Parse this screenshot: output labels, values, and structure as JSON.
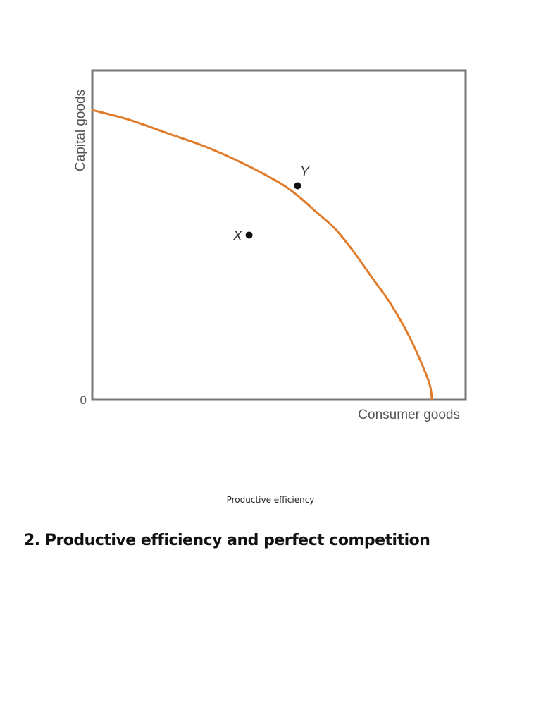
{
  "chart_data": {
    "type": "line",
    "title": "",
    "xlabel": "Consumer goods",
    "ylabel": "Capital goods",
    "origin_label": "0",
    "xlim": [
      0,
      100
    ],
    "ylim": [
      0,
      100
    ],
    "grid": false,
    "legend": "none",
    "series": [
      {
        "x": [
          0,
          10,
          20,
          30,
          40,
          50,
          55,
          60,
          65,
          70,
          75,
          80,
          85,
          90,
          91
        ],
        "y": [
          88,
          85,
          81,
          77,
          72,
          66,
          62,
          57,
          52,
          45,
          37,
          29,
          19,
          6,
          0
        ],
        "color": "#e07b2a"
      }
    ],
    "points": [
      {
        "label": "X",
        "x": 42,
        "y": 50,
        "color": "#111111"
      },
      {
        "label": "Y",
        "x": 55,
        "y": 65,
        "color": "#111111"
      }
    ]
  },
  "caption": "Productive efficiency",
  "heading": "2. Productive efficiency and perfect competition"
}
